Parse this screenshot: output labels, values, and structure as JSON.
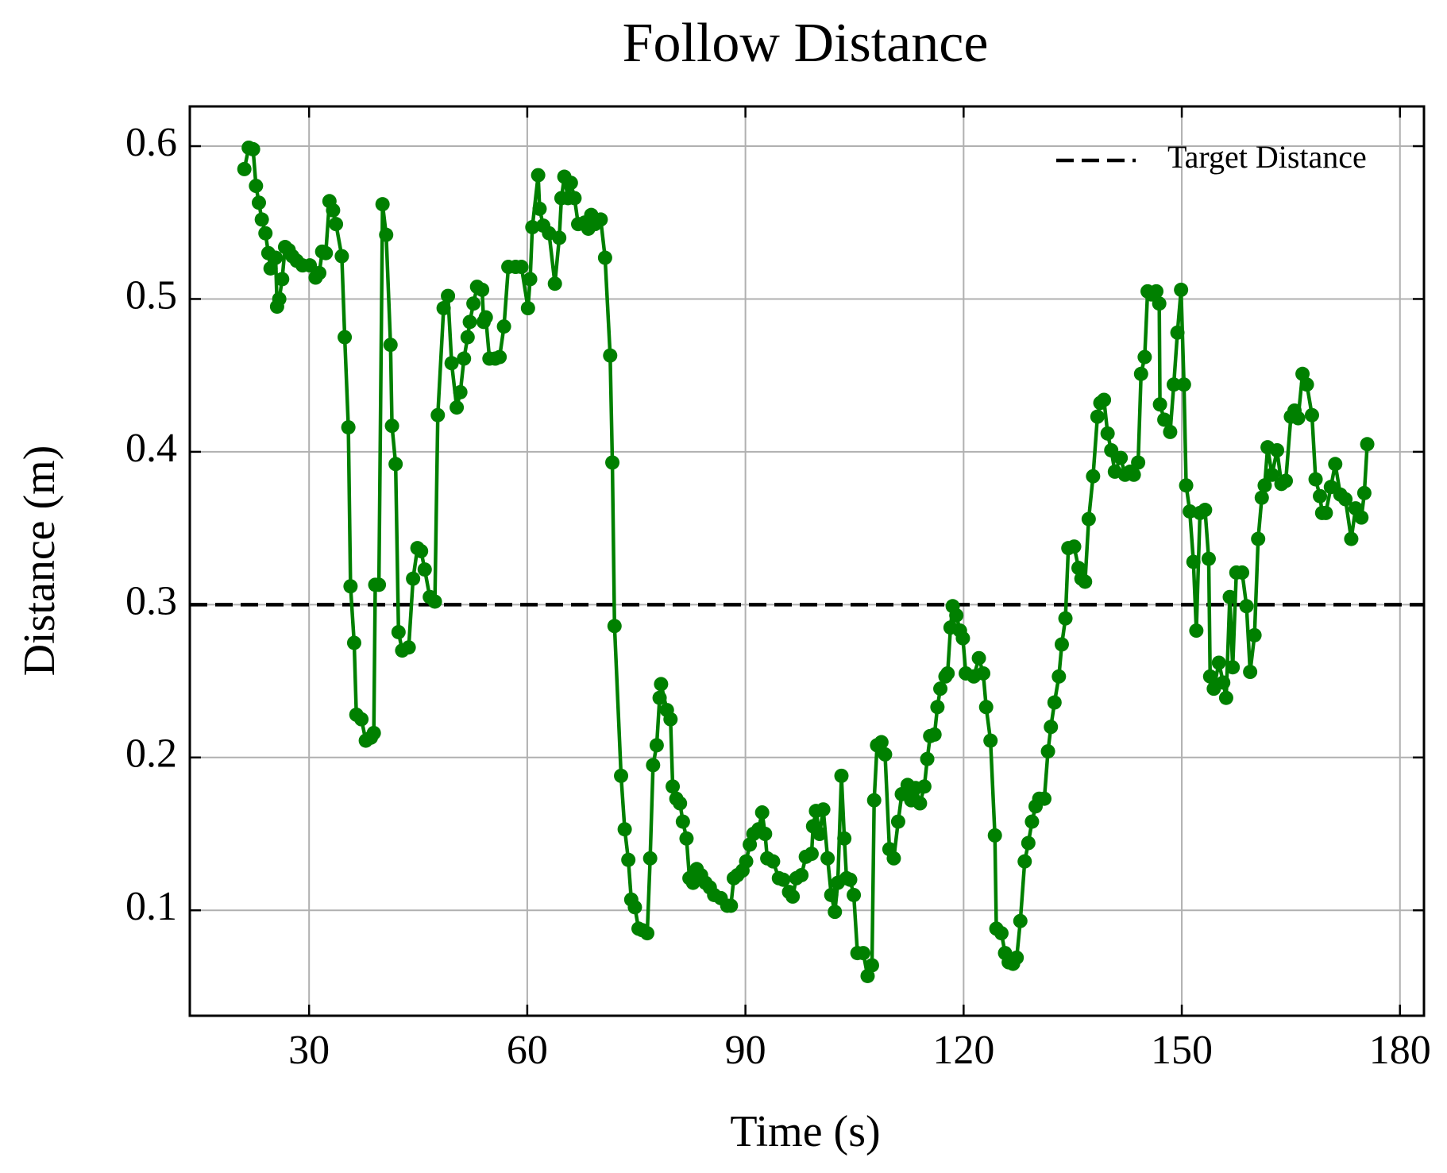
{
  "chart_data": {
    "type": "line",
    "title": "Follow Distance",
    "xlabel": "Time (s)",
    "ylabel": "Distance (m)",
    "x": [
      21.1,
      21.7,
      22.3,
      22.7,
      23.1,
      23.5,
      24.0,
      24.4,
      24.7,
      25.4,
      25.6,
      25.9,
      26.3,
      26.7,
      27.2,
      27.7,
      28.3,
      29.1,
      30.1,
      30.9,
      31.4,
      31.8,
      32.3,
      32.8,
      33.3,
      33.7,
      34.5,
      34.9,
      35.4,
      35.7,
      36.2,
      36.5,
      37.2,
      37.8,
      38.5,
      38.9,
      39.1,
      39.6,
      40.1,
      40.6,
      41.2,
      41.4,
      41.9,
      42.3,
      42.8,
      43.7,
      44.3,
      44.9,
      45.4,
      45.9,
      46.6,
      47.3,
      47.7,
      48.5,
      49.1,
      49.6,
      50.3,
      50.8,
      51.3,
      51.8,
      52.1,
      52.6,
      53.1,
      53.8,
      54.0,
      54.3,
      54.8,
      55.6,
      56.2,
      56.8,
      57.4,
      58.4,
      59.2,
      60.1,
      60.4,
      60.7,
      61.5,
      61.7,
      62.2,
      63.0,
      63.8,
      64.4,
      64.7,
      65.1,
      65.6,
      66.0,
      66.5,
      67.0,
      67.9,
      68.4,
      68.8,
      69.3,
      70.1,
      70.7,
      71.4,
      71.7,
      72.0,
      72.9,
      73.4,
      73.9,
      74.3,
      74.8,
      75.3,
      75.8,
      76.5,
      76.9,
      77.3,
      77.8,
      78.2,
      78.4,
      79.2,
      79.7,
      80.0,
      80.5,
      81.0,
      81.4,
      81.9,
      82.3,
      82.8,
      83.3,
      83.9,
      84.5,
      85.1,
      85.7,
      86.6,
      87.5,
      88.0,
      88.4,
      88.9,
      89.6,
      90.1,
      90.6,
      91.1,
      91.8,
      92.3,
      92.7,
      93.0,
      93.8,
      94.6,
      95.2,
      96.0,
      96.5,
      97.0,
      97.7,
      98.3,
      99.1,
      99.3,
      99.7,
      100.2,
      100.7,
      101.3,
      101.8,
      102.3,
      102.7,
      103.2,
      103.6,
      103.9,
      104.4,
      104.9,
      105.4,
      106.2,
      106.8,
      107.4,
      107.7,
      108.1,
      108.7,
      109.2,
      109.8,
      110.4,
      111.0,
      111.5,
      112.3,
      112.8,
      113.4,
      114.0,
      114.6,
      115.0,
      115.4,
      116.0,
      116.4,
      116.8,
      117.5,
      117.8,
      118.2,
      118.5,
      119.0,
      119.5,
      119.9,
      120.3,
      121.4,
      122.1,
      122.7,
      123.1,
      123.7,
      124.3,
      124.5,
      125.2,
      125.7,
      126.2,
      126.8,
      127.3,
      127.8,
      128.4,
      128.9,
      129.4,
      129.9,
      130.4,
      131.1,
      131.6,
      132.0,
      132.5,
      133.1,
      133.5,
      134.0,
      134.4,
      135.2,
      135.8,
      136.2,
      136.7,
      137.2,
      137.8,
      138.4,
      138.8,
      139.3,
      139.8,
      140.3,
      140.8,
      141.6,
      142.2,
      142.9,
      143.4,
      144.0,
      144.4,
      144.9,
      145.3,
      145.8,
      146.5,
      146.9,
      147.0,
      147.6,
      148.4,
      148.9,
      149.4,
      149.9,
      150.3,
      150.6,
      151.1,
      151.6,
      152.0,
      152.5,
      153.2,
      153.7,
      153.9,
      154.4,
      155.1,
      155.7,
      156.1,
      156.6,
      157.0,
      157.5,
      158.3,
      158.9,
      159.4,
      160.0,
      160.5,
      161.0,
      161.4,
      161.8,
      162.4,
      163.1,
      163.7,
      164.3,
      165.0,
      165.5,
      166.0,
      166.6,
      167.2,
      167.9,
      168.4,
      169.0,
      169.3,
      169.8,
      170.5,
      171.1,
      171.8,
      172.5,
      173.3,
      173.9,
      174.7,
      175.1,
      175.5
    ],
    "series": [
      {
        "color": "#008000",
        "values": [
          0.585,
          0.599,
          0.598,
          0.574,
          0.563,
          0.552,
          0.543,
          0.53,
          0.52,
          0.527,
          0.495,
          0.5,
          0.513,
          0.534,
          0.532,
          0.528,
          0.525,
          0.522,
          0.522,
          0.514,
          0.517,
          0.531,
          0.53,
          0.564,
          0.558,
          0.549,
          0.528,
          0.475,
          0.416,
          0.312,
          0.275,
          0.228,
          0.225,
          0.211,
          0.213,
          0.216,
          0.313,
          0.313,
          0.562,
          0.542,
          0.47,
          0.417,
          0.392,
          0.282,
          0.27,
          0.272,
          0.317,
          0.337,
          0.335,
          0.323,
          0.305,
          0.302,
          0.424,
          0.494,
          0.502,
          0.458,
          0.429,
          0.439,
          0.461,
          0.475,
          0.485,
          0.497,
          0.508,
          0.506,
          0.485,
          0.488,
          0.461,
          0.461,
          0.462,
          0.482,
          0.521,
          0.521,
          0.521,
          0.494,
          0.513,
          0.547,
          0.581,
          0.559,
          0.548,
          0.543,
          0.51,
          0.54,
          0.566,
          0.58,
          0.566,
          0.576,
          0.566,
          0.549,
          0.55,
          0.546,
          0.555,
          0.549,
          0.552,
          0.527,
          0.463,
          0.393,
          0.286,
          0.188,
          0.153,
          0.133,
          0.107,
          0.102,
          0.088,
          0.087,
          0.085,
          0.134,
          0.195,
          0.208,
          0.239,
          0.248,
          0.231,
          0.225,
          0.181,
          0.173,
          0.17,
          0.158,
          0.147,
          0.121,
          0.118,
          0.127,
          0.123,
          0.118,
          0.115,
          0.11,
          0.108,
          0.103,
          0.103,
          0.121,
          0.123,
          0.126,
          0.132,
          0.143,
          0.15,
          0.153,
          0.164,
          0.15,
          0.134,
          0.132,
          0.121,
          0.12,
          0.112,
          0.109,
          0.121,
          0.123,
          0.135,
          0.137,
          0.155,
          0.165,
          0.15,
          0.166,
          0.134,
          0.11,
          0.099,
          0.118,
          0.188,
          0.147,
          0.121,
          0.12,
          0.11,
          0.072,
          0.072,
          0.057,
          0.064,
          0.172,
          0.208,
          0.21,
          0.202,
          0.14,
          0.134,
          0.158,
          0.176,
          0.182,
          0.172,
          0.18,
          0.17,
          0.181,
          0.199,
          0.214,
          0.215,
          0.233,
          0.245,
          0.253,
          0.255,
          0.285,
          0.299,
          0.293,
          0.283,
          0.278,
          0.255,
          0.253,
          0.265,
          0.255,
          0.233,
          0.211,
          0.149,
          0.088,
          0.085,
          0.072,
          0.066,
          0.065,
          0.069,
          0.093,
          0.132,
          0.144,
          0.158,
          0.168,
          0.173,
          0.173,
          0.204,
          0.22,
          0.236,
          0.253,
          0.274,
          0.291,
          0.337,
          0.338,
          0.324,
          0.317,
          0.315,
          0.356,
          0.384,
          0.423,
          0.432,
          0.434,
          0.412,
          0.401,
          0.387,
          0.396,
          0.385,
          0.387,
          0.385,
          0.393,
          0.451,
          0.462,
          0.505,
          0.503,
          0.505,
          0.497,
          0.431,
          0.421,
          0.413,
          0.444,
          0.478,
          0.506,
          0.444,
          0.378,
          0.361,
          0.328,
          0.283,
          0.36,
          0.362,
          0.33,
          0.253,
          0.245,
          0.262,
          0.249,
          0.239,
          0.305,
          0.259,
          0.321,
          0.321,
          0.299,
          0.256,
          0.28,
          0.343,
          0.37,
          0.378,
          0.403,
          0.385,
          0.401,
          0.379,
          0.381,
          0.423,
          0.427,
          0.422,
          0.451,
          0.444,
          0.424,
          0.382,
          0.371,
          0.36,
          0.36,
          0.377,
          0.392,
          0.372,
          0.369,
          0.343,
          0.363,
          0.357,
          0.373,
          0.405
        ]
      }
    ],
    "hlines": [
      {
        "name": "Target Distance",
        "value": 0.3,
        "color": "#000000",
        "dashed": true
      }
    ],
    "xlim": [
      13.6,
      183.3
    ],
    "ylim": [
      0.031,
      0.626
    ],
    "xticks": [
      30,
      60,
      90,
      120,
      150,
      180
    ],
    "yticks": [
      0.1,
      0.2,
      0.3,
      0.4,
      0.5,
      0.6
    ],
    "grid": true,
    "legend": "upper right"
  }
}
